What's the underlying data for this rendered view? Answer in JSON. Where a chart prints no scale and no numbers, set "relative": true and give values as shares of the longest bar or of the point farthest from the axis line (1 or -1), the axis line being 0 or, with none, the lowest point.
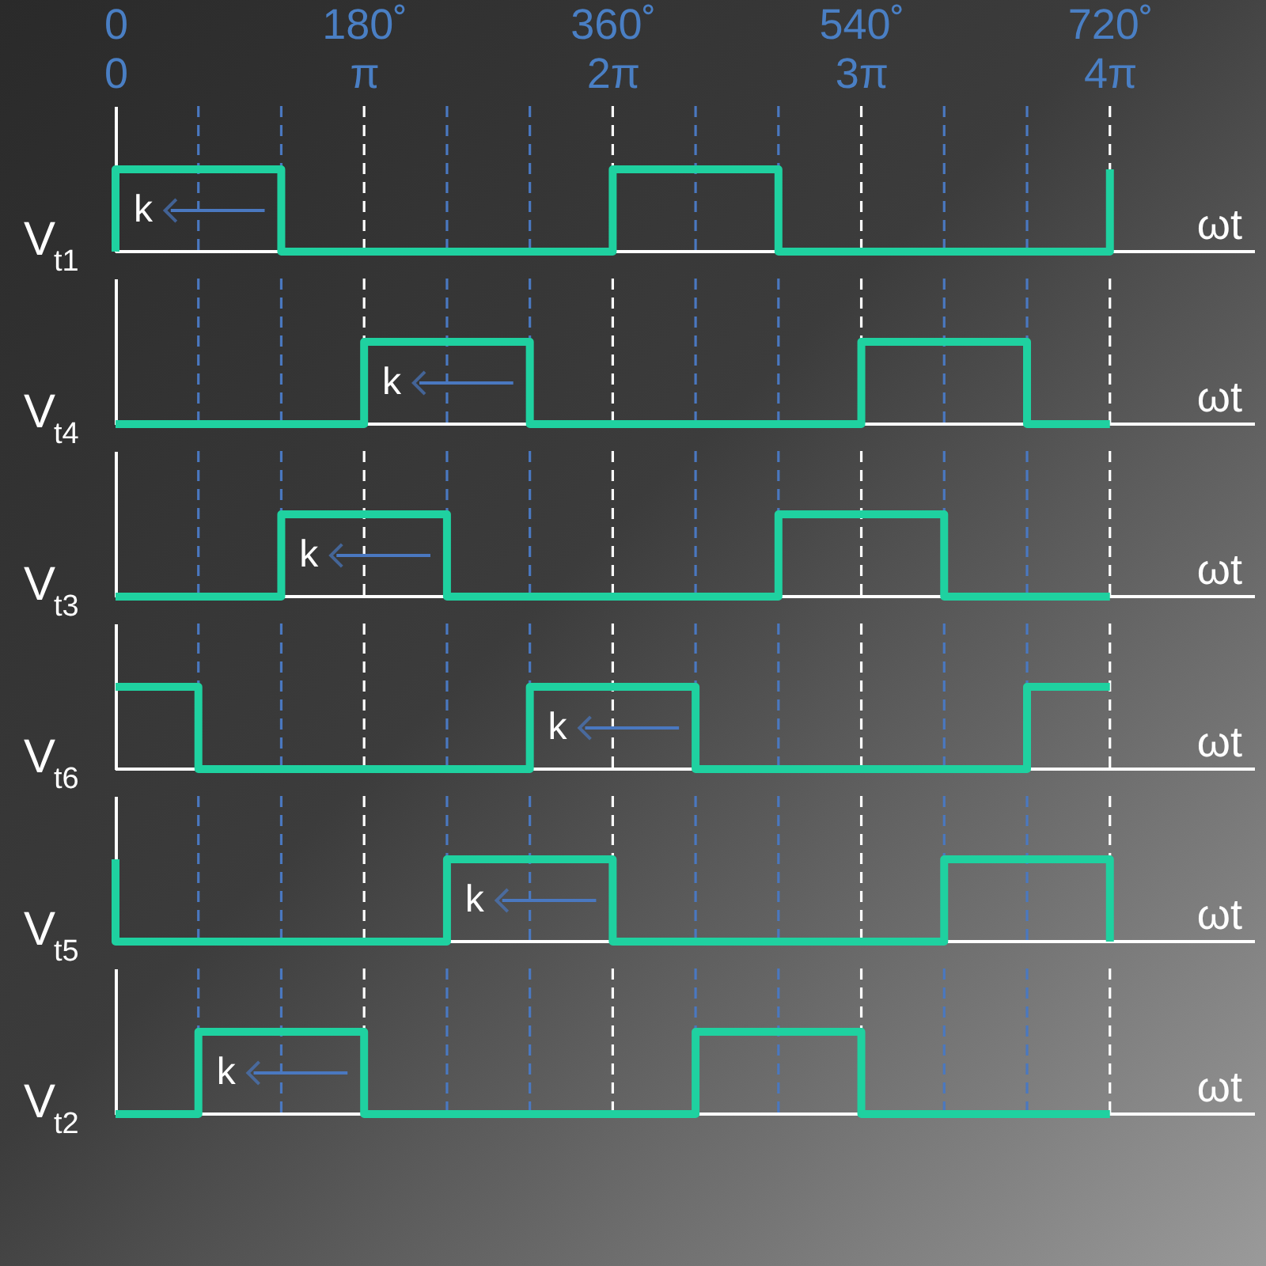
{
  "chart_data": [
    {
      "type": "step",
      "ylabel": "V$_{t1}$",
      "xlabel": "ωt",
      "relative": true,
      "xlim": [
        0,
        825
      ],
      "xticks": [
        {
          "value": 0,
          "label": "0"
        },
        {
          "value": 180,
          "label": "180˚"
        },
        {
          "value": 360,
          "label": "360˚"
        },
        {
          "value": 540,
          "label": "540˚"
        },
        {
          "value": 720,
          "label": "720˚"
        }
      ],
      "x2lim": [
        0,
        14.4
      ],
      "x2ticks": [
        0,
        {
          "value": 3.1416,
          "label": "π"
        },
        {
          "value": 6.2832,
          "label": "2π"
        },
        {
          "value": 9.4248,
          "label": "3π"
        },
        {
          "value": 12.5664,
          "label": "4π"
        }
      ],
      "tick_labels": "x",
      "series": [
        {
          "color": "#1fd1a0",
          "x": [
            0,
            0,
            120,
            360,
            480,
            720,
            720
          ],
          "values": [
            0,
            1,
            0,
            1,
            0,
            0,
            1
          ]
        }
      ],
      "ref_lines": [
        {
          "axis": "x",
          "value": 60,
          "color": "#4a78c0",
          "line_style": "dashed"
        },
        {
          "axis": "x",
          "value": 120,
          "color": "#4a78c0",
          "line_style": "dashed"
        },
        {
          "axis": "x",
          "value": 180,
          "color": "#ffffff",
          "line_style": "dashed"
        },
        {
          "axis": "x",
          "value": 240,
          "color": "#4a78c0",
          "line_style": "dashed"
        },
        {
          "axis": "x",
          "value": 300,
          "color": "#4a78c0",
          "line_style": "dashed"
        },
        {
          "axis": "x",
          "value": 360,
          "color": "#ffffff",
          "line_style": "dashed"
        },
        {
          "axis": "x",
          "value": 420,
          "color": "#4a78c0",
          "line_style": "dashed"
        },
        {
          "axis": "x",
          "value": 480,
          "color": "#4a78c0",
          "line_style": "dashed"
        },
        {
          "axis": "x",
          "value": 540,
          "color": "#ffffff",
          "line_style": "dashed"
        },
        {
          "axis": "x",
          "value": 600,
          "color": "#4a78c0",
          "line_style": "dashed"
        },
        {
          "axis": "x",
          "value": 660,
          "color": "#4a78c0",
          "line_style": "dashed"
        },
        {
          "axis": "x",
          "value": 720,
          "color": "#ffffff",
          "line_style": "dashed"
        }
      ],
      "annotations": [
        "k"
      ]
    },
    {
      "type": "step",
      "ylabel": "V$_{t4}$",
      "xlabel": "ωt",
      "relative": true,
      "xlim": [
        0,
        825
      ],
      "tick_labels": false,
      "series": [
        {
          "color": "#1fd1a0",
          "x": [
            0,
            180,
            300,
            540,
            660,
            720
          ],
          "values": [
            0,
            1,
            0,
            1,
            0,
            0
          ]
        }
      ],
      "ref_lines": [
        {
          "axis": "x",
          "value": 60,
          "color": "#4a78c0",
          "line_style": "dashed"
        },
        {
          "axis": "x",
          "value": 120,
          "color": "#4a78c0",
          "line_style": "dashed"
        },
        {
          "axis": "x",
          "value": 180,
          "color": "#ffffff",
          "line_style": "dashed"
        },
        {
          "axis": "x",
          "value": 240,
          "color": "#4a78c0",
          "line_style": "dashed"
        },
        {
          "axis": "x",
          "value": 300,
          "color": "#4a78c0",
          "line_style": "dashed"
        },
        {
          "axis": "x",
          "value": 360,
          "color": "#ffffff",
          "line_style": "dashed"
        },
        {
          "axis": "x",
          "value": 420,
          "color": "#4a78c0",
          "line_style": "dashed"
        },
        {
          "axis": "x",
          "value": 480,
          "color": "#4a78c0",
          "line_style": "dashed"
        },
        {
          "axis": "x",
          "value": 540,
          "color": "#ffffff",
          "line_style": "dashed"
        },
        {
          "axis": "x",
          "value": 600,
          "color": "#4a78c0",
          "line_style": "dashed"
        },
        {
          "axis": "x",
          "value": 660,
          "color": "#4a78c0",
          "line_style": "dashed"
        },
        {
          "axis": "x",
          "value": 720,
          "color": "#ffffff",
          "line_style": "dashed"
        }
      ],
      "annotations": [
        "k"
      ]
    },
    {
      "type": "step",
      "ylabel": "V$_{t3}$",
      "xlabel": "ωt",
      "relative": true,
      "xlim": [
        0,
        825
      ],
      "tick_labels": false,
      "series": [
        {
          "color": "#1fd1a0",
          "x": [
            0,
            120,
            240,
            480,
            600,
            720
          ],
          "values": [
            0,
            1,
            0,
            1,
            0,
            0
          ]
        }
      ],
      "ref_lines": [
        {
          "axis": "x",
          "value": 60,
          "color": "#4a78c0",
          "line_style": "dashed"
        },
        {
          "axis": "x",
          "value": 120,
          "color": "#4a78c0",
          "line_style": "dashed"
        },
        {
          "axis": "x",
          "value": 180,
          "color": "#ffffff",
          "line_style": "dashed"
        },
        {
          "axis": "x",
          "value": 240,
          "color": "#4a78c0",
          "line_style": "dashed"
        },
        {
          "axis": "x",
          "value": 300,
          "color": "#4a78c0",
          "line_style": "dashed"
        },
        {
          "axis": "x",
          "value": 360,
          "color": "#ffffff",
          "line_style": "dashed"
        },
        {
          "axis": "x",
          "value": 420,
          "color": "#4a78c0",
          "line_style": "dashed"
        },
        {
          "axis": "x",
          "value": 480,
          "color": "#4a78c0",
          "line_style": "dashed"
        },
        {
          "axis": "x",
          "value": 540,
          "color": "#ffffff",
          "line_style": "dashed"
        },
        {
          "axis": "x",
          "value": 600,
          "color": "#4a78c0",
          "line_style": "dashed"
        },
        {
          "axis": "x",
          "value": 660,
          "color": "#4a78c0",
          "line_style": "dashed"
        },
        {
          "axis": "x",
          "value": 720,
          "color": "#ffffff",
          "line_style": "dashed"
        }
      ],
      "annotations": [
        "k"
      ]
    },
    {
      "type": "step",
      "ylabel": "V$_{t6}$",
      "xlabel": "ωt",
      "relative": true,
      "xlim": [
        0,
        825
      ],
      "tick_labels": false,
      "series": [
        {
          "color": "#1fd1a0",
          "x": [
            0,
            60,
            300,
            420,
            660,
            720
          ],
          "values": [
            1,
            0,
            1,
            0,
            1,
            1
          ]
        }
      ],
      "ref_lines": [
        {
          "axis": "x",
          "value": 60,
          "color": "#4a78c0",
          "line_style": "dashed"
        },
        {
          "axis": "x",
          "value": 120,
          "color": "#4a78c0",
          "line_style": "dashed"
        },
        {
          "axis": "x",
          "value": 180,
          "color": "#ffffff",
          "line_style": "dashed"
        },
        {
          "axis": "x",
          "value": 240,
          "color": "#4a78c0",
          "line_style": "dashed"
        },
        {
          "axis": "x",
          "value": 300,
          "color": "#4a78c0",
          "line_style": "dashed"
        },
        {
          "axis": "x",
          "value": 360,
          "color": "#ffffff",
          "line_style": "dashed"
        },
        {
          "axis": "x",
          "value": 420,
          "color": "#4a78c0",
          "line_style": "dashed"
        },
        {
          "axis": "x",
          "value": 480,
          "color": "#4a78c0",
          "line_style": "dashed"
        },
        {
          "axis": "x",
          "value": 540,
          "color": "#ffffff",
          "line_style": "dashed"
        },
        {
          "axis": "x",
          "value": 600,
          "color": "#4a78c0",
          "line_style": "dashed"
        },
        {
          "axis": "x",
          "value": 660,
          "color": "#4a78c0",
          "line_style": "dashed"
        },
        {
          "axis": "x",
          "value": 720,
          "color": "#ffffff",
          "line_style": "dashed"
        }
      ],
      "annotations": [
        "k"
      ]
    },
    {
      "type": "step",
      "ylabel": "V$_{t5}$",
      "xlabel": "ωt",
      "relative": true,
      "xlim": [
        0,
        825
      ],
      "tick_labels": false,
      "series": [
        {
          "color": "#1fd1a0",
          "x": [
            0,
            0,
            240,
            360,
            600,
            720,
            720
          ],
          "values": [
            1,
            0,
            1,
            0,
            1,
            1,
            0
          ]
        }
      ],
      "ref_lines": [
        {
          "axis": "x",
          "value": 60,
          "color": "#4a78c0",
          "line_style": "dashed"
        },
        {
          "axis": "x",
          "value": 120,
          "color": "#4a78c0",
          "line_style": "dashed"
        },
        {
          "axis": "x",
          "value": 180,
          "color": "#ffffff",
          "line_style": "dashed"
        },
        {
          "axis": "x",
          "value": 240,
          "color": "#4a78c0",
          "line_style": "dashed"
        },
        {
          "axis": "x",
          "value": 300,
          "color": "#4a78c0",
          "line_style": "dashed"
        },
        {
          "axis": "x",
          "value": 360,
          "color": "#ffffff",
          "line_style": "dashed"
        },
        {
          "axis": "x",
          "value": 420,
          "color": "#4a78c0",
          "line_style": "dashed"
        },
        {
          "axis": "x",
          "value": 480,
          "color": "#4a78c0",
          "line_style": "dashed"
        },
        {
          "axis": "x",
          "value": 540,
          "color": "#ffffff",
          "line_style": "dashed"
        },
        {
          "axis": "x",
          "value": 600,
          "color": "#4a78c0",
          "line_style": "dashed"
        },
        {
          "axis": "x",
          "value": 660,
          "color": "#4a78c0",
          "line_style": "dashed"
        },
        {
          "axis": "x",
          "value": 720,
          "color": "#ffffff",
          "line_style": "dashed"
        }
      ],
      "annotations": [
        "k"
      ]
    },
    {
      "type": "step",
      "ylabel": "V$_{t2}$",
      "xlabel": "ωt",
      "relative": true,
      "xlim": [
        0,
        825
      ],
      "tick_labels": false,
      "series": [
        {
          "color": "#1fd1a0",
          "x": [
            0,
            60,
            180,
            420,
            540,
            720
          ],
          "values": [
            0,
            1,
            0,
            1,
            0,
            0
          ]
        }
      ],
      "ref_lines": [
        {
          "axis": "x",
          "value": 60,
          "color": "#4a78c0",
          "line_style": "dashed"
        },
        {
          "axis": "x",
          "value": 120,
          "color": "#4a78c0",
          "line_style": "dashed"
        },
        {
          "axis": "x",
          "value": 180,
          "color": "#ffffff",
          "line_style": "dashed"
        },
        {
          "axis": "x",
          "value": 240,
          "color": "#4a78c0",
          "line_style": "dashed"
        },
        {
          "axis": "x",
          "value": 300,
          "color": "#4a78c0",
          "line_style": "dashed"
        },
        {
          "axis": "x",
          "value": 360,
          "color": "#ffffff",
          "line_style": "dashed"
        },
        {
          "axis": "x",
          "value": 420,
          "color": "#4a78c0",
          "line_style": "dashed"
        },
        {
          "axis": "x",
          "value": 480,
          "color": "#4a78c0",
          "line_style": "dashed"
        },
        {
          "axis": "x",
          "value": 540,
          "color": "#ffffff",
          "line_style": "dashed"
        },
        {
          "axis": "x",
          "value": 600,
          "color": "#4a78c0",
          "line_style": "dashed"
        },
        {
          "axis": "x",
          "value": 660,
          "color": "#4a78c0",
          "line_style": "dashed"
        },
        {
          "axis": "x",
          "value": 720,
          "color": "#ffffff",
          "line_style": "dashed"
        }
      ],
      "annotations": [
        "k"
      ]
    }
  ]
}
